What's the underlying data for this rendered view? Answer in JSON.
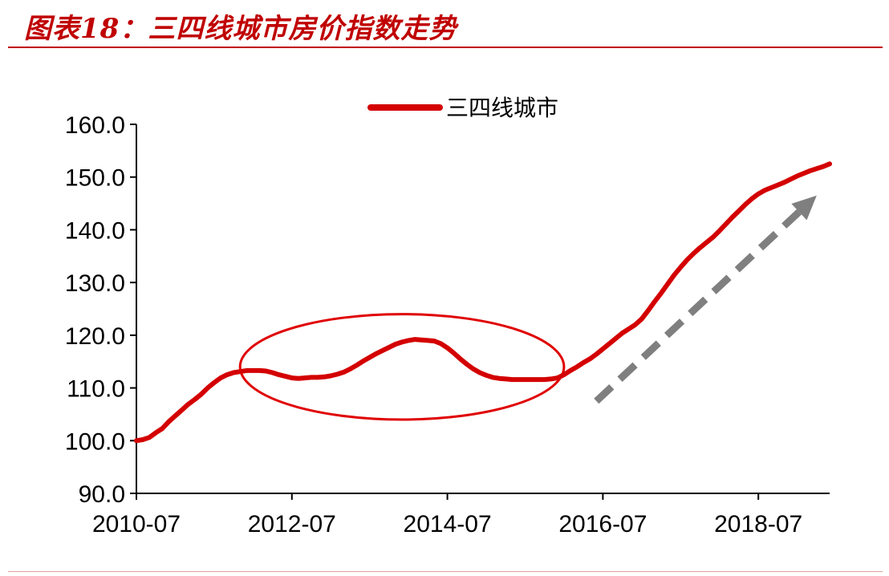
{
  "header": {
    "title": "图表18：三四线城市房价指数走势"
  },
  "colors": {
    "series": "#d40000",
    "annotation_ellipse": "#e00000",
    "trend_arrow": "#7f7f7f",
    "title": "#c00000",
    "axis": "#000000"
  },
  "chart_data": {
    "type": "line",
    "title": "",
    "xlabel": "",
    "ylabel": "",
    "ylim": [
      90,
      160
    ],
    "y_ticks": [
      "90.0",
      "100.0",
      "110.0",
      "120.0",
      "130.0",
      "140.0",
      "150.0",
      "160.0"
    ],
    "x_ticks": [
      "2010-07",
      "2012-07",
      "2014-07",
      "2016-07",
      "2018-07"
    ],
    "xlim": [
      "2010-07",
      "2019-06"
    ],
    "grid": false,
    "legend_position": "top-center",
    "series": [
      {
        "name": "三四线城市",
        "points": [
          [
            "2010-07",
            100.0
          ],
          [
            "2010-08",
            100.2
          ],
          [
            "2010-09",
            100.6
          ],
          [
            "2010-10",
            101.5
          ],
          [
            "2010-11",
            102.3
          ],
          [
            "2010-12",
            103.6
          ],
          [
            "2011-01",
            104.7
          ],
          [
            "2011-02",
            105.8
          ],
          [
            "2011-03",
            106.9
          ],
          [
            "2011-04",
            107.8
          ],
          [
            "2011-05",
            108.8
          ],
          [
            "2011-06",
            110.0
          ],
          [
            "2011-07",
            111.0
          ],
          [
            "2011-08",
            111.9
          ],
          [
            "2011-09",
            112.5
          ],
          [
            "2011-10",
            112.9
          ],
          [
            "2011-11",
            113.1
          ],
          [
            "2011-12",
            113.3
          ],
          [
            "2012-01",
            113.3
          ],
          [
            "2012-02",
            113.3
          ],
          [
            "2012-03",
            113.2
          ],
          [
            "2012-04",
            112.9
          ],
          [
            "2012-05",
            112.5
          ],
          [
            "2012-06",
            112.2
          ],
          [
            "2012-07",
            111.9
          ],
          [
            "2012-08",
            111.8
          ],
          [
            "2012-09",
            111.9
          ],
          [
            "2012-10",
            112.0
          ],
          [
            "2012-11",
            112.0
          ],
          [
            "2012-12",
            112.1
          ],
          [
            "2013-01",
            112.3
          ],
          [
            "2013-02",
            112.6
          ],
          [
            "2013-03",
            113.0
          ],
          [
            "2013-04",
            113.6
          ],
          [
            "2013-05",
            114.3
          ],
          [
            "2013-06",
            115.1
          ],
          [
            "2013-07",
            115.8
          ],
          [
            "2013-08",
            116.5
          ],
          [
            "2013-09",
            117.1
          ],
          [
            "2013-10",
            117.7
          ],
          [
            "2013-11",
            118.3
          ],
          [
            "2013-12",
            118.7
          ],
          [
            "2014-01",
            119.0
          ],
          [
            "2014-02",
            119.2
          ],
          [
            "2014-03",
            119.1
          ],
          [
            "2014-04",
            119.0
          ],
          [
            "2014-05",
            118.9
          ],
          [
            "2014-06",
            118.4
          ],
          [
            "2014-07",
            117.6
          ],
          [
            "2014-08",
            116.6
          ],
          [
            "2014-09",
            115.5
          ],
          [
            "2014-10",
            114.5
          ],
          [
            "2014-11",
            113.6
          ],
          [
            "2014-12",
            112.9
          ],
          [
            "2015-01",
            112.4
          ],
          [
            "2015-02",
            112.0
          ],
          [
            "2015-03",
            111.8
          ],
          [
            "2015-04",
            111.7
          ],
          [
            "2015-05",
            111.6
          ],
          [
            "2015-06",
            111.6
          ],
          [
            "2015-07",
            111.6
          ],
          [
            "2015-08",
            111.6
          ],
          [
            "2015-09",
            111.6
          ],
          [
            "2015-10",
            111.6
          ],
          [
            "2015-11",
            111.7
          ],
          [
            "2015-12",
            111.9
          ],
          [
            "2016-01",
            112.5
          ],
          [
            "2016-02",
            113.3
          ],
          [
            "2016-03",
            114.0
          ],
          [
            "2016-04",
            114.8
          ],
          [
            "2016-05",
            115.5
          ],
          [
            "2016-06",
            116.4
          ],
          [
            "2016-07",
            117.4
          ],
          [
            "2016-08",
            118.4
          ],
          [
            "2016-09",
            119.4
          ],
          [
            "2016-10",
            120.4
          ],
          [
            "2016-11",
            121.2
          ],
          [
            "2016-12",
            122.0
          ],
          [
            "2017-01",
            123.1
          ],
          [
            "2017-02",
            124.7
          ],
          [
            "2017-03",
            126.4
          ],
          [
            "2017-04",
            128.0
          ],
          [
            "2017-05",
            129.7
          ],
          [
            "2017-06",
            131.4
          ],
          [
            "2017-07",
            132.9
          ],
          [
            "2017-08",
            134.3
          ],
          [
            "2017-09",
            135.5
          ],
          [
            "2017-10",
            136.6
          ],
          [
            "2017-11",
            137.6
          ],
          [
            "2017-12",
            138.6
          ],
          [
            "2018-01",
            139.8
          ],
          [
            "2018-02",
            141.1
          ],
          [
            "2018-03",
            142.4
          ],
          [
            "2018-04",
            143.6
          ],
          [
            "2018-05",
            144.8
          ],
          [
            "2018-06",
            145.9
          ],
          [
            "2018-07",
            146.8
          ],
          [
            "2018-08",
            147.5
          ],
          [
            "2018-09",
            148.0
          ],
          [
            "2018-10",
            148.5
          ],
          [
            "2018-11",
            149.0
          ],
          [
            "2018-12",
            149.6
          ],
          [
            "2019-01",
            150.2
          ],
          [
            "2019-02",
            150.7
          ],
          [
            "2019-03",
            151.2
          ],
          [
            "2019-04",
            151.6
          ],
          [
            "2019-05",
            152.0
          ],
          [
            "2019-06",
            152.5
          ]
        ]
      }
    ],
    "annotations": [
      {
        "type": "ellipse",
        "x_range": [
          "2011-11",
          "2016-01"
        ],
        "y_range": [
          104,
          124
        ]
      },
      {
        "type": "dashed-arrow",
        "from": [
          "2016-06",
          107.5
        ],
        "to": [
          "2019-04",
          146.5
        ]
      }
    ]
  }
}
